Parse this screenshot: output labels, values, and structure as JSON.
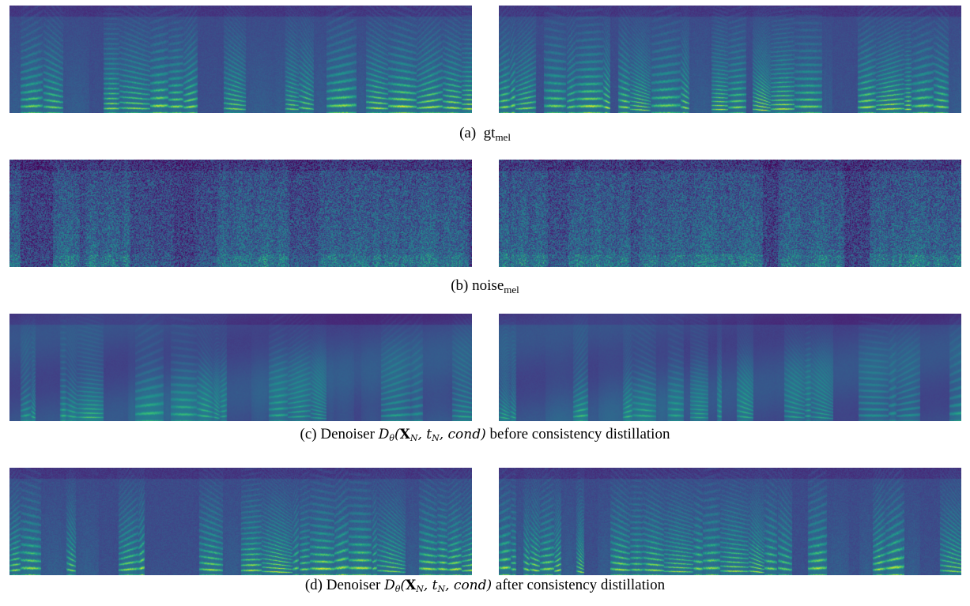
{
  "panels": [
    {
      "id": "a",
      "label": "(a)",
      "title_main": "gt",
      "title_sub": "mel",
      "kind": "gt"
    },
    {
      "id": "b",
      "label": "(b)",
      "title_main": "noise",
      "title_sub": "mel",
      "kind": "noise"
    },
    {
      "id": "c",
      "label": "(c)",
      "prefix": "Denoiser",
      "formula": {
        "D": "D",
        "D_sub": "θ",
        "X": "X",
        "X_sub": "N",
        "t": "t",
        "t_sub": "N",
        "cond": "cond"
      },
      "suffix": "before consistency distillation",
      "kind": "before"
    },
    {
      "id": "d",
      "label": "(d)",
      "prefix": "Denoiser",
      "formula": {
        "D": "D",
        "D_sub": "θ",
        "X": "X",
        "X_sub": "N",
        "t": "t",
        "t_sub": "N",
        "cond": "cond"
      },
      "suffix": "after consistency distillation",
      "kind": "after"
    }
  ],
  "colormap": "viridis"
}
